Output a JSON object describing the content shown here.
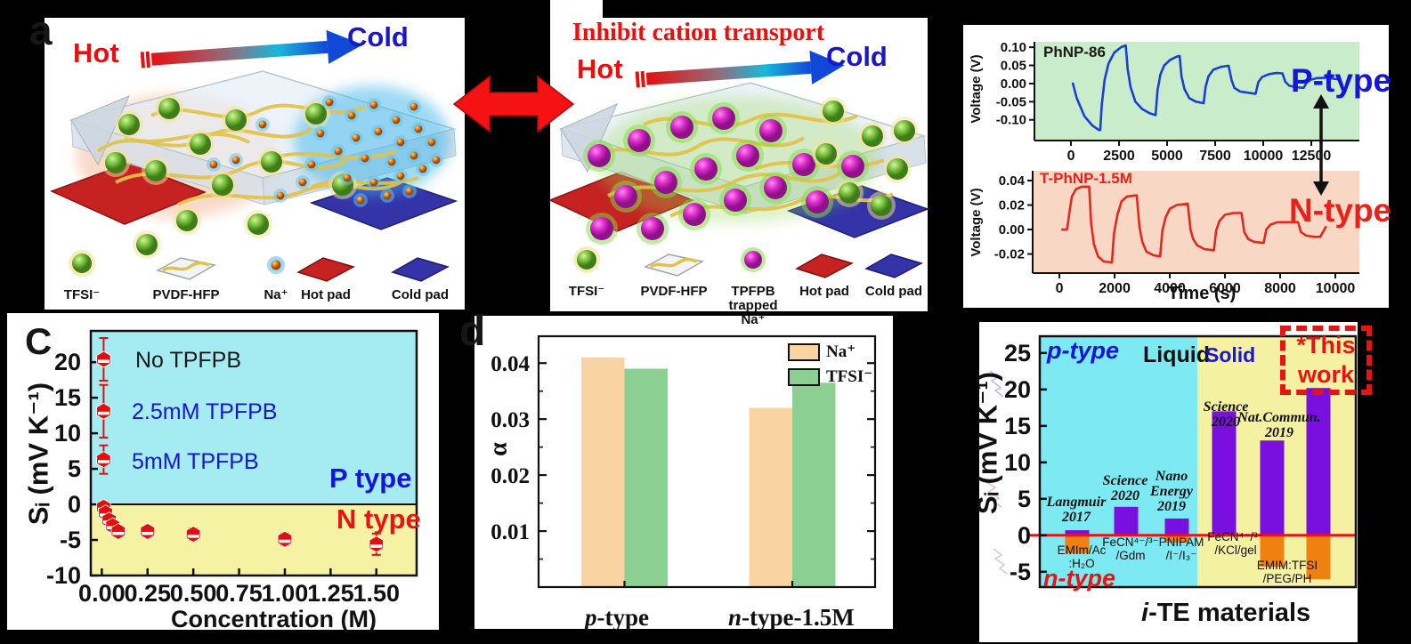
{
  "panel_a": {
    "label": "a",
    "hot": "Hot",
    "cold": "Cold",
    "legend": [
      {
        "label": "TFSI⁻"
      },
      {
        "label": "PVDF-HFP"
      },
      {
        "label": "Na⁺"
      },
      {
        "label": "Hot pad"
      },
      {
        "label": "Cold pad"
      }
    ]
  },
  "panel_b": {
    "title": "Inhibit cation transport",
    "hot": "Hot",
    "cold": "Cold",
    "legend": [
      {
        "label": "TFSI⁻"
      },
      {
        "label": "PVDF-HFP"
      },
      {
        "label": "TPFPB trapped\nNa⁺"
      },
      {
        "label": "Hot pad"
      },
      {
        "label": "Cold pad"
      }
    ]
  },
  "chart_data": [
    {
      "id": "voltage-p-type",
      "type": "line",
      "title": "PhNP-86",
      "annotation": "P-type",
      "ylabel": "Voltage (V)",
      "xlabel": "",
      "bg_color": "#c9ecca",
      "line_color": "#1a3fd8",
      "title_color": "#1a1a1a",
      "annotation_color": "#1515dc",
      "xlim": [
        -1900,
        15000
      ],
      "ylim": [
        -0.157,
        0.115
      ],
      "yticks": [
        {
          "v": 0.1,
          "label": "0.10"
        },
        {
          "v": 0.05,
          "label": "0.05"
        },
        {
          "v": 0.0,
          "label": "0.00"
        },
        {
          "v": -0.05,
          "label": "-0.05"
        },
        {
          "v": -0.1,
          "label": "-0.10"
        }
      ],
      "xticks": [
        {
          "v": 0,
          "label": "0"
        },
        {
          "v": 2500,
          "label": "2500"
        },
        {
          "v": 5000,
          "label": "5000"
        },
        {
          "v": 7500,
          "label": "7500"
        },
        {
          "v": 10000,
          "label": "10000"
        },
        {
          "v": 12500,
          "label": "12500"
        }
      ],
      "series": [
        {
          "name": "PhNP-86",
          "points": [
            [
              100,
              0
            ],
            [
              300,
              -0.04
            ],
            [
              700,
              -0.09
            ],
            [
              1100,
              -0.115
            ],
            [
              1450,
              -0.128
            ],
            [
              1520,
              -0.128
            ],
            [
              1600,
              -0.06
            ],
            [
              1750,
              0.01
            ],
            [
              1950,
              0.055
            ],
            [
              2250,
              0.085
            ],
            [
              2600,
              0.1
            ],
            [
              2850,
              0.105
            ],
            [
              2950,
              0.04
            ],
            [
              3100,
              -0.01
            ],
            [
              3350,
              -0.05
            ],
            [
              3700,
              -0.07
            ],
            [
              4100,
              -0.082
            ],
            [
              4400,
              -0.087
            ],
            [
              4500,
              -0.02
            ],
            [
              4650,
              0.025
            ],
            [
              4850,
              0.05
            ],
            [
              5150,
              0.065
            ],
            [
              5500,
              0.074
            ],
            [
              5650,
              0.076
            ],
            [
              5750,
              0.02
            ],
            [
              5900,
              -0.015
            ],
            [
              6150,
              -0.04
            ],
            [
              6500,
              -0.05
            ],
            [
              6900,
              -0.054
            ],
            [
              7000,
              -0.01
            ],
            [
              7150,
              0.02
            ],
            [
              7400,
              0.038
            ],
            [
              7800,
              0.046
            ],
            [
              8200,
              0.049
            ],
            [
              8350,
              0.01
            ],
            [
              8500,
              -0.012
            ],
            [
              8800,
              -0.022
            ],
            [
              9300,
              -0.026
            ],
            [
              9600,
              -0.028
            ],
            [
              9750,
              0.005
            ],
            [
              9950,
              0.018
            ],
            [
              10300,
              0.026
            ],
            [
              10700,
              0.029
            ],
            [
              11000,
              0.028
            ],
            [
              11150,
              0.005
            ],
            [
              11350,
              -0.006
            ],
            [
              11700,
              -0.01
            ],
            [
              12100,
              -0.012
            ],
            [
              12250,
              0.002
            ],
            [
              12450,
              0.01
            ],
            [
              12800,
              0.015
            ],
            [
              13300,
              0.016
            ],
            [
              13800,
              0.012
            ]
          ]
        }
      ]
    },
    {
      "id": "voltage-n-type",
      "type": "line",
      "title": "T-PhNP-1.5M",
      "annotation": "N-type",
      "ylabel": "Voltage (V)",
      "xlabel": "Time (s)",
      "bg_color": "#f8d7c4",
      "line_color": "#e8271c",
      "title_color": "#e8221a",
      "annotation_color": "#e8221a",
      "xlim": [
        -970,
        10870
      ],
      "ylim": [
        -0.0356,
        0.048
      ],
      "yticks": [
        {
          "v": 0.04,
          "label": "0.04"
        },
        {
          "v": 0.02,
          "label": "0.02"
        },
        {
          "v": 0.0,
          "label": "0.00"
        },
        {
          "v": -0.02,
          "label": "-0.02"
        }
      ],
      "xticks": [
        {
          "v": 0,
          "label": "0"
        },
        {
          "v": 2000,
          "label": "2000"
        },
        {
          "v": 4000,
          "label": "4000"
        },
        {
          "v": 6000,
          "label": "6000"
        },
        {
          "v": 8000,
          "label": "8000"
        },
        {
          "v": 10000,
          "label": "10000"
        }
      ],
      "series": [
        {
          "name": "T-PhNP-1.5M",
          "points": [
            [
              100,
              0
            ],
            [
              280,
              0
            ],
            [
              350,
              0.012
            ],
            [
              450,
              0.027
            ],
            [
              600,
              0.033
            ],
            [
              800,
              0.035
            ],
            [
              1080,
              0.035
            ],
            [
              1150,
              0.005
            ],
            [
              1250,
              -0.012
            ],
            [
              1400,
              -0.022
            ],
            [
              1600,
              -0.026
            ],
            [
              1900,
              -0.027
            ],
            [
              1980,
              -0.003
            ],
            [
              2100,
              0.012
            ],
            [
              2250,
              0.023
            ],
            [
              2450,
              0.027
            ],
            [
              2800,
              0.028
            ],
            [
              2900,
              0.002
            ],
            [
              3000,
              -0.01
            ],
            [
              3150,
              -0.018
            ],
            [
              3400,
              -0.021
            ],
            [
              3650,
              -0.022
            ],
            [
              3730,
              -0.001
            ],
            [
              3850,
              0.01
            ],
            [
              4000,
              0.017
            ],
            [
              4250,
              0.02
            ],
            [
              4650,
              0.021
            ],
            [
              4750,
              0
            ],
            [
              4850,
              -0.008
            ],
            [
              5000,
              -0.013
            ],
            [
              5250,
              -0.016
            ],
            [
              5600,
              -0.017
            ],
            [
              5680,
              -0.001
            ],
            [
              5800,
              0.007
            ],
            [
              6000,
              0.012
            ],
            [
              6300,
              0.0135
            ],
            [
              6600,
              0.0135
            ],
            [
              6700,
              -0.002
            ],
            [
              6850,
              -0.008
            ],
            [
              7050,
              -0.01
            ],
            [
              7400,
              -0.011
            ],
            [
              7500,
              0
            ],
            [
              7650,
              0.004
            ],
            [
              7900,
              0.006
            ],
            [
              8300,
              0.006
            ],
            [
              8650,
              0.006
            ],
            [
              8750,
              -0.002
            ],
            [
              8950,
              -0.005
            ],
            [
              9250,
              -0.006
            ],
            [
              9450,
              -0.006
            ],
            [
              9550,
              -0.002
            ],
            [
              9650,
              0.002
            ]
          ]
        }
      ]
    },
    {
      "id": "seebeck-vs-concentration",
      "type": "scatter",
      "panel_label": "C",
      "ylabel": "Sᵢ (mV K⁻¹)",
      "xlabel": "Concentration (M)",
      "marker_color": "#e01010",
      "regions": {
        "p_label": "P type",
        "p_color": "#a5ebf2",
        "n_label": "N type",
        "n_color": "#f5f2a3"
      },
      "xlim": [
        -0.06,
        1.72
      ],
      "ylim": [
        -10,
        24.4
      ],
      "yticks": [
        {
          "v": 20,
          "label": "20"
        },
        {
          "v": 15,
          "label": "15"
        },
        {
          "v": 10,
          "label": "10"
        },
        {
          "v": 5,
          "label": "5"
        },
        {
          "v": 0,
          "label": "0"
        },
        {
          "v": -5,
          "label": "-5"
        },
        {
          "v": -10,
          "label": "-10"
        }
      ],
      "xticks": [
        {
          "v": 0,
          "label": "0.00"
        },
        {
          "v": 0.25,
          "label": "0.25"
        },
        {
          "v": 0.5,
          "label": "0.50"
        },
        {
          "v": 0.75,
          "label": "0.75"
        },
        {
          "v": 1.0,
          "label": "1.00"
        },
        {
          "v": 1.25,
          "label": "1.25"
        },
        {
          "v": 1.5,
          "label": "1.50"
        }
      ],
      "annotations": [
        {
          "text": "No TPFPB",
          "color": "#1a1a1a"
        },
        {
          "text": "2.5mM TPFPB",
          "color": "#1515d2"
        },
        {
          "text": "5mM TPFPB",
          "color": "#1515d2"
        }
      ],
      "points": [
        {
          "x": 0.01,
          "y": 20.4,
          "err": 3.0
        },
        {
          "x": 0.01,
          "y": 13.1,
          "err": 3.7
        },
        {
          "x": 0.01,
          "y": 6.3,
          "err": 2.0
        },
        {
          "x": 0.01,
          "y": -0.4,
          "err": 0.5
        },
        {
          "x": 0.02,
          "y": -1.2,
          "err": 0.5
        },
        {
          "x": 0.04,
          "y": -2.2,
          "err": 0.5
        },
        {
          "x": 0.06,
          "y": -3.0,
          "err": 0.6
        },
        {
          "x": 0.09,
          "y": -3.8,
          "err": 0.7
        },
        {
          "x": 0.25,
          "y": -3.8,
          "err": 0.7
        },
        {
          "x": 0.5,
          "y": -4.2,
          "err": 0.8
        },
        {
          "x": 1.0,
          "y": -4.9,
          "err": 0.8
        },
        {
          "x": 1.5,
          "y": -5.6,
          "err": 1.5
        }
      ]
    },
    {
      "id": "ion-transference",
      "type": "bar",
      "panel_label": "d",
      "ylabel": "α",
      "categories": [
        {
          "italic": "p",
          "rest": "-type"
        },
        {
          "italic": "n",
          "rest": "-type-1.5M"
        }
      ],
      "series": [
        {
          "name": "Na⁺",
          "color": "#fad3a2",
          "values": [
            0.041,
            0.032
          ]
        },
        {
          "name": "TFSI⁻",
          "color": "#8ccf92",
          "values": [
            0.039,
            0.0365
          ]
        }
      ],
      "ylim": [
        0,
        0.0448
      ],
      "yticks": [
        {
          "v": 0.01,
          "label": "0.01"
        },
        {
          "v": 0.02,
          "label": "0.02"
        },
        {
          "v": 0.03,
          "label": "0.03"
        },
        {
          "v": 0.04,
          "label": "0.04"
        }
      ],
      "legend_position": "top-right"
    },
    {
      "id": "ite-materials-comparison",
      "type": "bar",
      "ylabel": "Sᵢ (mV K⁻¹)",
      "xlabel_italic": "i",
      "xlabel_rest": "-TE materials",
      "ylim": [
        -7.1,
        27.3
      ],
      "yticks": [
        {
          "v": 25,
          "label": "25"
        },
        {
          "v": 20,
          "label": "20"
        },
        {
          "v": 15,
          "label": "15"
        },
        {
          "v": 10,
          "label": "10"
        },
        {
          "v": 5,
          "label": "5"
        },
        {
          "v": 0,
          "label": "0"
        },
        {
          "v": -5,
          "label": "-5"
        }
      ],
      "zero_line_color": "#e81414",
      "region_labels": {
        "p_type": "p-type",
        "liquid": "Liquid",
        "solid": "Solid",
        "n_type": "n-type"
      },
      "region_colors": {
        "liquid": "#7de9f2",
        "solid": "#f5f1a3"
      },
      "bar_colors": {
        "positive": "#7a10e0",
        "negative": "#f08010"
      },
      "this_work": {
        "line1": "*This",
        "line2": "work"
      },
      "bars": [
        {
          "journal_lines": [
            "Langmuir"
          ],
          "year": "2017",
          "material_lines": [
            "EMIm/Ac",
            ":H₂O"
          ],
          "positive": 0.7,
          "negative": -2.5
        },
        {
          "journal_lines": [
            "Science"
          ],
          "year": "2020",
          "material_lines": [
            "FeCN⁴⁻/³⁻",
            "/Gdm"
          ],
          "positive": 3.9,
          "negative": 0
        },
        {
          "journal_lines": [
            "Nano",
            "Energy"
          ],
          "year": "2019",
          "material_lines": [
            "PNIPAM",
            "/I⁻/I₃⁻"
          ],
          "positive": 2.3,
          "negative": -1.0
        },
        {
          "journal_lines": [
            "Science"
          ],
          "year": "2020",
          "material_lines": [
            "FeCN⁴⁻/³⁻",
            "/KCl/gel"
          ],
          "positive": 17.0,
          "negative": 0
        },
        {
          "journal_lines": [
            "Nat.Commun."
          ],
          "year": "2019",
          "material_lines": [
            "EMIM:TFSI",
            "/PEG/PH"
          ],
          "positive": 13.0,
          "negative": -4.3
        },
        {
          "journal_lines": [],
          "year": "",
          "material_lines": [],
          "positive": 20.2,
          "negative": -6.0,
          "highlight": "this_work"
        }
      ]
    }
  ]
}
